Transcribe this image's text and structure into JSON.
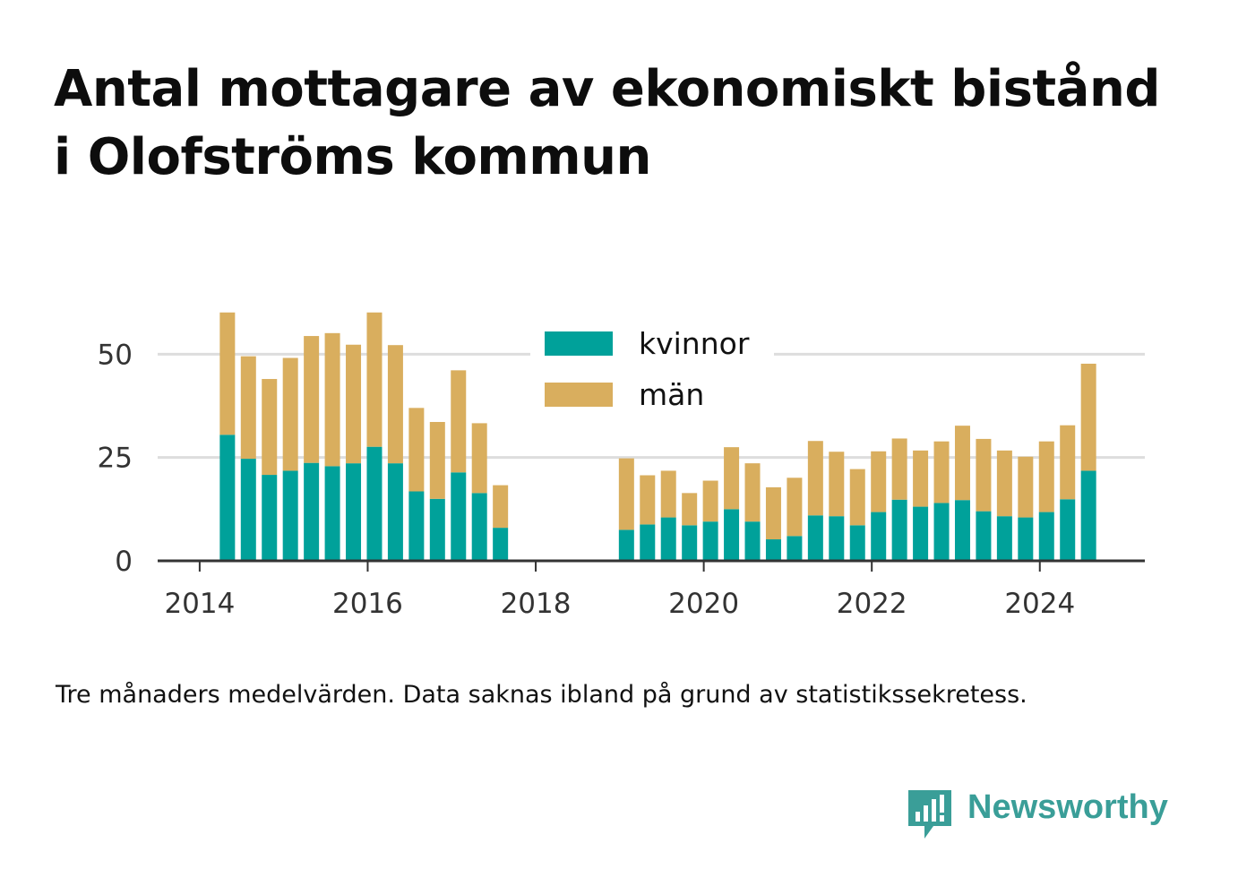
{
  "title": "Antal mottagare av ekonomiskt bistånd i Olofströms kommun",
  "note": "Tre månaders medelvärden. Data saknas ibland på grund av statistikssekretess.",
  "brand": {
    "name": "Newsworthy",
    "color": "#3a9e98",
    "icon": "chat-bar-chart-icon"
  },
  "colors": {
    "kvinnor": "#00a19a",
    "man": "#d9ae5e",
    "grid": "#dddddd",
    "axis": "#333333"
  },
  "chart_data": {
    "type": "bar",
    "stacked": true,
    "x_ticks": [
      "2014",
      "2016",
      "2018",
      "2020",
      "2022",
      "2024"
    ],
    "y_ticks": [
      "0",
      "25",
      "50"
    ],
    "ylim": [
      0,
      62
    ],
    "xlim": [
      2013.5,
      2025.25
    ],
    "legend": {
      "placement": "top-center",
      "entries": [
        "kvinnor",
        "män"
      ]
    },
    "grid": "horizontal",
    "x": [
      2014.33,
      2014.58,
      2014.83,
      2015.08,
      2015.33,
      2015.58,
      2015.83,
      2016.08,
      2016.33,
      2016.58,
      2016.83,
      2017.08,
      2017.33,
      2017.58,
      2019.08,
      2019.33,
      2019.58,
      2019.83,
      2020.08,
      2020.33,
      2020.58,
      2020.83,
      2021.08,
      2021.33,
      2021.58,
      2021.83,
      2022.08,
      2022.33,
      2022.58,
      2022.83,
      2023.08,
      2023.33,
      2023.58,
      2023.83,
      2024.08,
      2024.33,
      2024.58
    ],
    "series": [
      {
        "name": "kvinnor",
        "values": [
          30.5,
          24.7,
          20.8,
          21.8,
          23.7,
          22.9,
          23.6,
          27.6,
          23.6,
          16.8,
          15.0,
          21.4,
          16.4,
          8.0,
          7.5,
          8.8,
          10.5,
          8.6,
          9.5,
          12.5,
          9.5,
          5.2,
          6.0,
          11.0,
          10.8,
          8.6,
          11.8,
          14.8,
          13.1,
          14.0,
          14.7,
          12.0,
          10.8,
          10.5,
          11.8,
          14.9,
          21.8
        ]
      },
      {
        "name": "män",
        "values": [
          29.6,
          24.8,
          23.2,
          27.3,
          30.7,
          32.2,
          28.7,
          32.5,
          28.6,
          20.2,
          18.6,
          24.7,
          16.9,
          10.3,
          17.3,
          11.9,
          11.3,
          7.8,
          9.9,
          15.0,
          14.1,
          12.6,
          14.1,
          18.0,
          15.6,
          13.6,
          14.7,
          14.8,
          13.6,
          14.9,
          18.0,
          17.5,
          15.9,
          14.7,
          17.1,
          17.9,
          25.9
        ]
      }
    ]
  }
}
